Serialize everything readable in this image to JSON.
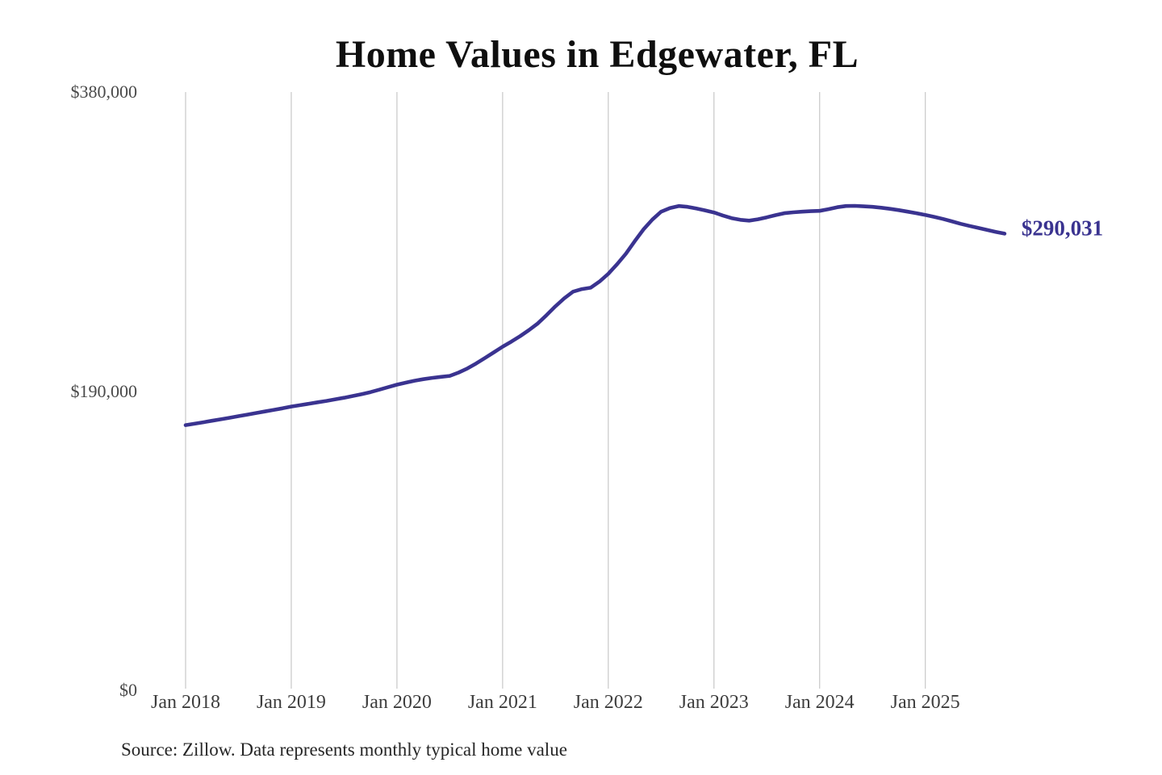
{
  "title": "Home Values in Edgewater, FL",
  "source_note": "Source: Zillow. Data represents monthly typical home value",
  "colors": {
    "line": "#3a3390",
    "end_label": "#3a3390",
    "gridline": "#cccccc",
    "title_text": "#0f0f0f",
    "y_axis_text": "#4a4a4a",
    "x_axis_text": "#3d3d3d",
    "source_text": "#262626",
    "background": "#ffffff"
  },
  "chart_data": {
    "type": "line",
    "title": "Home Values in Edgewater, FL",
    "xlabel": "",
    "ylabel": "",
    "unit": "USD",
    "ylim": [
      0,
      380000
    ],
    "y_tick_values": [
      0,
      190000,
      380000
    ],
    "y_tick_labels": [
      "$0",
      "$190,000",
      "$380,000"
    ],
    "x_tick_labels": [
      "Jan 2018",
      "Jan 2019",
      "Jan 2020",
      "Jan 2021",
      "Jan 2022",
      "Jan 2023",
      "Jan 2024",
      "Jan 2025"
    ],
    "x_tick_month_indices": [
      0,
      12,
      24,
      36,
      48,
      60,
      72,
      84
    ],
    "grid": "vertical-yearly-only",
    "legend": "none",
    "end_value": 290031,
    "end_value_label": "$290,031",
    "annotation": "Source: Zillow. Data represents monthly typical home value",
    "x_months": [
      "2018-01",
      "2018-02",
      "2018-03",
      "2018-04",
      "2018-05",
      "2018-06",
      "2018-07",
      "2018-08",
      "2018-09",
      "2018-10",
      "2018-11",
      "2018-12",
      "2019-01",
      "2019-02",
      "2019-03",
      "2019-04",
      "2019-05",
      "2019-06",
      "2019-07",
      "2019-08",
      "2019-09",
      "2019-10",
      "2019-11",
      "2019-12",
      "2020-01",
      "2020-02",
      "2020-03",
      "2020-04",
      "2020-05",
      "2020-06",
      "2020-07",
      "2020-08",
      "2020-09",
      "2020-10",
      "2020-11",
      "2020-12",
      "2021-01",
      "2021-02",
      "2021-03",
      "2021-04",
      "2021-05",
      "2021-06",
      "2021-07",
      "2021-08",
      "2021-09",
      "2021-10",
      "2021-11",
      "2021-12",
      "2022-01",
      "2022-02",
      "2022-03",
      "2022-04",
      "2022-05",
      "2022-06",
      "2022-07",
      "2022-08",
      "2022-09",
      "2022-10",
      "2022-11",
      "2022-12",
      "2023-01",
      "2023-02",
      "2023-03",
      "2023-04",
      "2023-05",
      "2023-06",
      "2023-07",
      "2023-08",
      "2023-09",
      "2023-10",
      "2023-11",
      "2023-12",
      "2024-01",
      "2024-02",
      "2024-03",
      "2024-04",
      "2024-05",
      "2024-06",
      "2024-07",
      "2024-08",
      "2024-09",
      "2024-10",
      "2024-11",
      "2024-12",
      "2025-01",
      "2025-02",
      "2025-03",
      "2025-04",
      "2025-05",
      "2025-06",
      "2025-07",
      "2025-08",
      "2025-09",
      "2025-10"
    ],
    "series": [
      {
        "name": "Monthly typical home value",
        "values": [
          168400,
          169300,
          170200,
          171200,
          172100,
          173100,
          174100,
          175100,
          176100,
          177100,
          178100,
          179100,
          180200,
          181100,
          182000,
          182900,
          183800,
          184800,
          185800,
          186900,
          188100,
          189400,
          190900,
          192500,
          194100,
          195400,
          196600,
          197600,
          198400,
          199100,
          199700,
          201800,
          204400,
          207600,
          211100,
          214600,
          218200,
          221500,
          225000,
          228800,
          233000,
          238300,
          243900,
          248900,
          253200,
          254800,
          255700,
          259600,
          264500,
          270600,
          277300,
          285200,
          292700,
          299000,
          304000,
          306300,
          307600,
          307100,
          306000,
          304800,
          303500,
          301600,
          299900,
          298800,
          298300,
          299200,
          300400,
          301800,
          303000,
          303600,
          304000,
          304300,
          304500,
          305600,
          306800,
          307600,
          307700,
          307400,
          307100,
          306500,
          305800,
          305000,
          304000,
          303000,
          301900,
          300700,
          299400,
          297900,
          296300,
          295000,
          293700,
          292400,
          291200,
          290031
        ]
      }
    ]
  }
}
